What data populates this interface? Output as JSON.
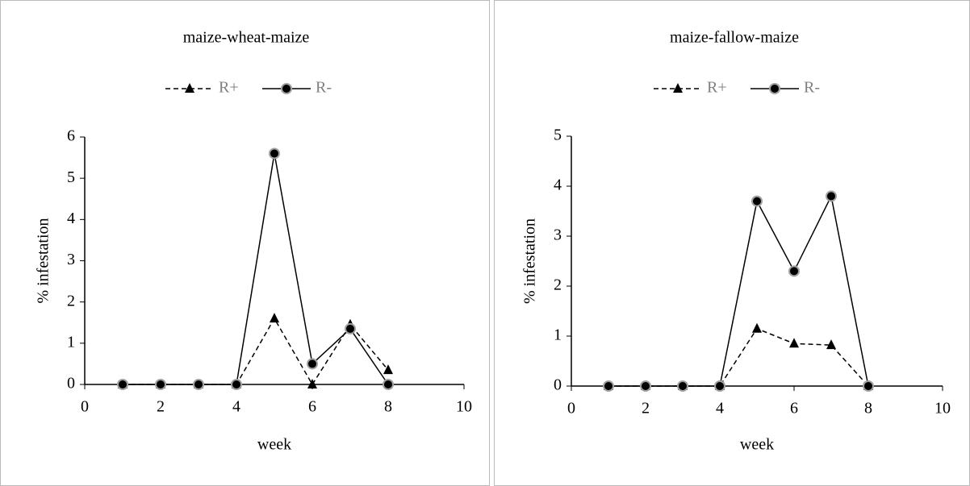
{
  "chart_data": [
    {
      "type": "line",
      "title": "maize-wheat-maize",
      "x_label": "week",
      "y_label": "% infestation",
      "x": [
        1,
        2,
        3,
        4,
        5,
        6,
        7,
        8
      ],
      "series": [
        {
          "name": "R+",
          "color": "#000000",
          "line_style": "dashed",
          "marker": "triangle",
          "values": [
            0,
            0,
            0,
            0,
            1.6,
            0,
            1.45,
            0.35
          ]
        },
        {
          "name": "R-",
          "color": "#000000",
          "line_style": "solid",
          "marker": "circle",
          "values": [
            0,
            0,
            0,
            0,
            5.6,
            0.5,
            1.35,
            0
          ]
        }
      ],
      "xlim": [
        0,
        10
      ],
      "xticks": [
        0,
        2,
        4,
        6,
        8,
        10
      ],
      "ylim": [
        0,
        6
      ],
      "yticks": [
        0,
        1,
        2,
        3,
        4,
        5,
        6
      ],
      "legend": "top"
    },
    {
      "type": "line",
      "title": "maize-fallow-maize",
      "x_label": "week",
      "y_label": "% infestation",
      "x": [
        1,
        2,
        3,
        4,
        5,
        6,
        7,
        8
      ],
      "series": [
        {
          "name": "R+",
          "color": "#000000",
          "line_style": "dashed",
          "marker": "triangle",
          "values": [
            0,
            0,
            0,
            0,
            1.15,
            0.85,
            0.82,
            0
          ]
        },
        {
          "name": "R-",
          "color": "#000000",
          "line_style": "solid",
          "marker": "circle",
          "values": [
            0,
            0,
            0,
            0,
            3.7,
            2.3,
            3.8,
            0
          ]
        }
      ],
      "xlim": [
        0,
        10
      ],
      "xticks": [
        0,
        2,
        4,
        6,
        8,
        10
      ],
      "ylim": [
        0,
        5
      ],
      "yticks": [
        0,
        1,
        2,
        3,
        4,
        5
      ],
      "legend": "top"
    }
  ]
}
